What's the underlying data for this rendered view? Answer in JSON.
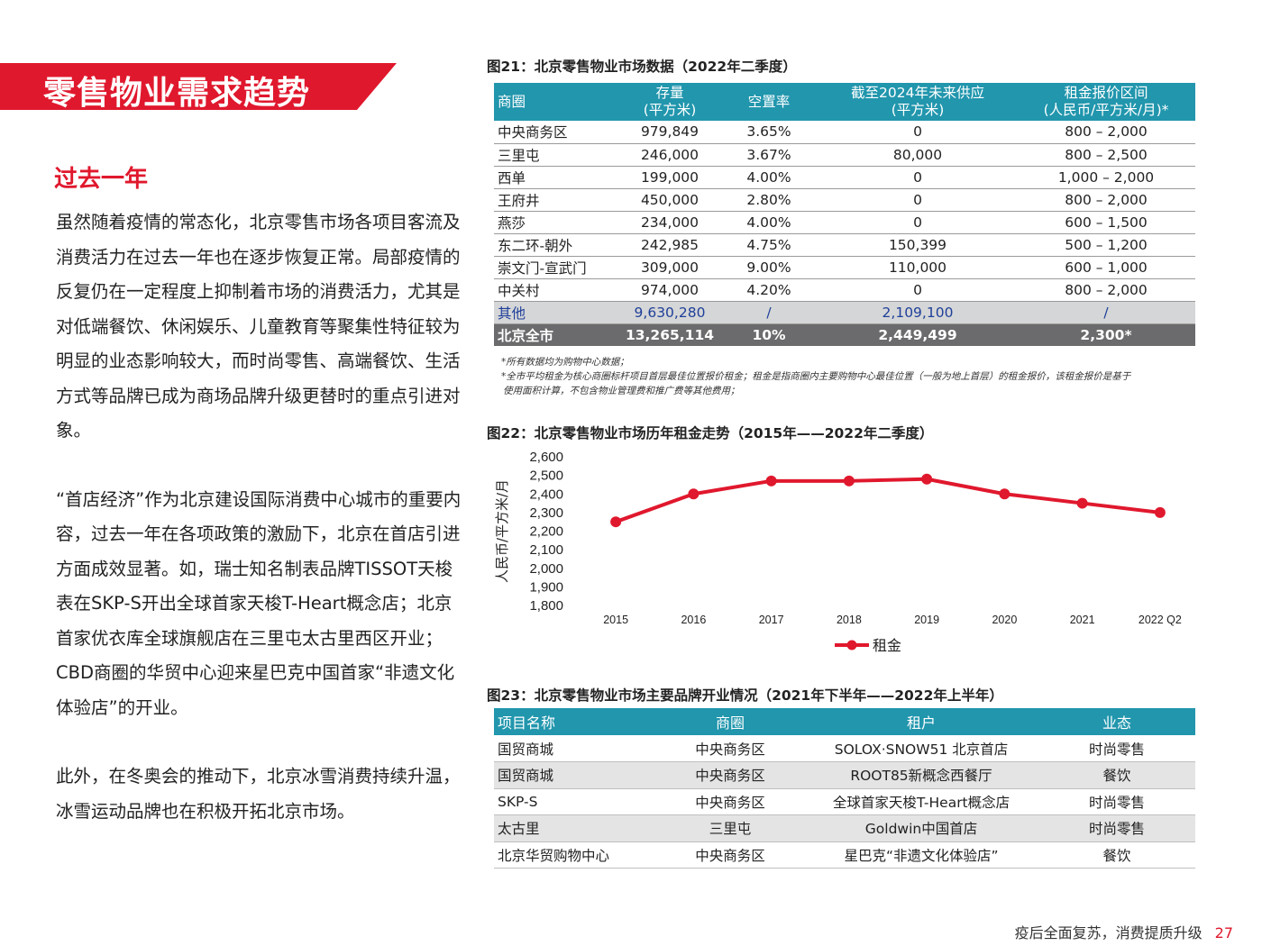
{
  "banner_title": "零售物业需求趋势",
  "section_heading": "过去一年",
  "paragraphs": [
    "虽然随着疫情的常态化，北京零售市场各项目客流及消费活力在过去一年也在逐步恢复正常。局部疫情的反复仍在一定程度上抑制着市场的消费活力，尤其是对低端餐饮、休闲娱乐、儿童教育等聚集性特征较为明显的业态影响较大，而时尚零售、高端餐饮、生活方式等品牌已成为商场品牌升级更替时的重点引进对象。",
    "“首店经济”作为北京建设国际消费中心城市的重要内容，过去一年在各项政策的激励下，北京在首店引进方面成效显著。如，瑞士知名制表品牌TISSOT天梭表在SKP-S开出全球首家天梭T-Heart概念店；北京首家优衣库全球旗舰店在三里屯太古里西区开业；CBD商圈的华贸中心迎来星巴克中国首家“非遗文化体验店”的开业。",
    "此外，在冬奥会的推动下，北京冰雪消费持续升温，冰雪运动品牌也在积极开拓北京市场。"
  ],
  "fig21": {
    "title": "图21：北京零售物业市场数据（2022年二季度）",
    "headers": [
      "商圈",
      "存量\n(平方米)",
      "空置率",
      "截至2024年未来供应\n(平方米)",
      "租金报价区间\n(人民币/平方米/月)*"
    ],
    "rows": [
      [
        "中央商务区",
        "979,849",
        "3.65%",
        "0",
        "800 – 2,000"
      ],
      [
        "三里屯",
        "246,000",
        "3.67%",
        "80,000",
        "800 – 2,500"
      ],
      [
        "西单",
        "199,000",
        "4.00%",
        "0",
        "1,000 – 2,000"
      ],
      [
        "王府井",
        "450,000",
        "2.80%",
        "0",
        "800 – 2,000"
      ],
      [
        "燕莎",
        "234,000",
        "4.00%",
        "0",
        "600 – 1,500"
      ],
      [
        "东二环-朝外",
        "242,985",
        "4.75%",
        "150,399",
        "500 – 1,200"
      ],
      [
        "崇文门-宣武门",
        "309,000",
        "9.00%",
        "110,000",
        "600 – 1,000"
      ],
      [
        "中关村",
        "974,000",
        "4.20%",
        "0",
        "800 – 2,000"
      ]
    ],
    "other_row": [
      "其他",
      "9,630,280",
      "/",
      "2,109,100",
      "/"
    ],
    "total_row": [
      "北京全市",
      "13,265,114",
      "10%",
      "2,449,499",
      "2,300*"
    ],
    "notes": [
      "*所有数据均为购物中心数据；",
      "*全市平均租金为核心商圈标杆项目首层最佳位置报价租金；租金是指商圈内主要购物中心最佳位置（一般为地上首层）的租金报价，该租金报价是基于",
      "使用面积计算，不包含物业管理费和推广费等其他费用；"
    ]
  },
  "fig22": {
    "title": "图22：北京零售物业市场历年租金走势（2015年——2022年二季度）"
  },
  "chart_data": {
    "type": "line",
    "title": "",
    "x": [
      "2015",
      "2016",
      "2017",
      "2018",
      "2019",
      "2020",
      "2021",
      "2022 Q2"
    ],
    "series": [
      {
        "name": "租金",
        "values": [
          2250,
          2400,
          2470,
          2470,
          2480,
          2400,
          2350,
          2300
        ]
      }
    ],
    "xlabel": "",
    "ylabel": "人民币/平方米/月",
    "ylim": [
      1800,
      2600
    ],
    "yticks": [
      "1,800",
      "1,900",
      "2,000",
      "2,100",
      "2,200",
      "2,300",
      "2,400",
      "2,500",
      "2,600"
    ],
    "grid": false,
    "legend": "bottom",
    "color": "#e0182d"
  },
  "fig23": {
    "title": "图23：北京零售物业市场主要品牌开业情况（2021年下半年——2022年上半年）",
    "headers": [
      "项目名称",
      "商圈",
      "租户",
      "业态"
    ],
    "rows": [
      [
        "国贸商城",
        "中央商务区",
        "SOLOX·SNOW51 北京首店",
        "时尚零售"
      ],
      [
        "国贸商城",
        "中央商务区",
        "ROOT85新概念西餐厅",
        "餐饮"
      ],
      [
        "SKP-S",
        "中央商务区",
        "全球首家天梭T-Heart概念店",
        "时尚零售"
      ],
      [
        "太古里",
        "三里屯",
        "Goldwin中国首店",
        "时尚零售"
      ],
      [
        "北京华贸购物中心",
        "中央商务区",
        "星巴克“非遗文化体验店”",
        "餐饮"
      ]
    ]
  },
  "footer": {
    "text": "疫后全面复苏，消费提质升级",
    "page": "27"
  }
}
